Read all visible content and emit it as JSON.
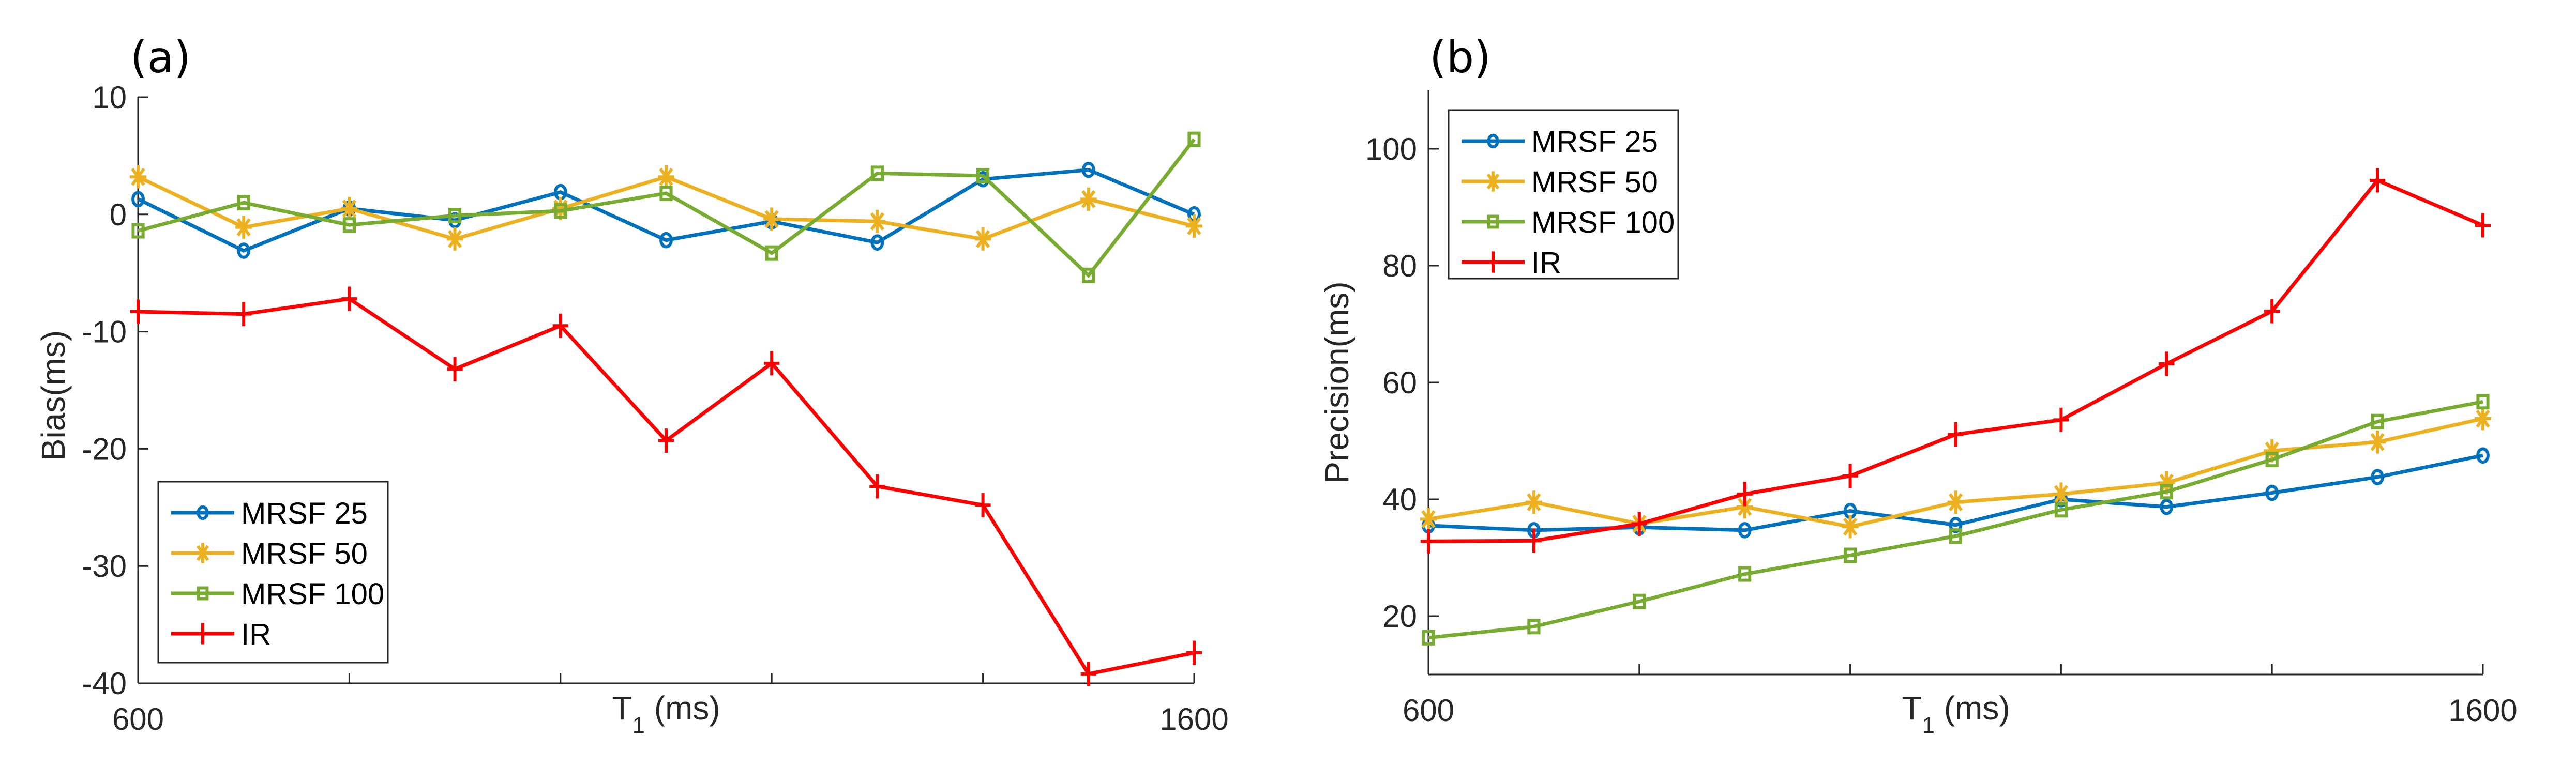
{
  "figure": {
    "panels": [
      "a",
      "b"
    ]
  },
  "chart_data": [
    {
      "type": "line",
      "panel_label": "(a)",
      "title": "",
      "xlabel": "T",
      "xlabel_subscript": "1",
      "xlabel_suffix": " (ms)",
      "ylabel": "Bias(ms)",
      "x": [
        600,
        700,
        800,
        900,
        1000,
        1100,
        1200,
        1300,
        1400,
        1500,
        1600
      ],
      "xlim": [
        600,
        1600
      ],
      "ylim": [
        -40,
        10
      ],
      "xticks": [
        600,
        800,
        1000,
        1200,
        1400,
        1600
      ],
      "xtick_labels": [
        "600",
        "",
        "",
        "",
        "",
        "1600"
      ],
      "yticks": [
        -40,
        -30,
        -20,
        -10,
        0,
        10
      ],
      "ytick_labels": [
        "-40",
        "-30",
        "-20",
        "-10",
        "0",
        "10"
      ],
      "grid": false,
      "legend_position": "bottom-left",
      "series": [
        {
          "name": "MRSF 25",
          "color": "#0072BD",
          "marker": "circle",
          "values": [
            1.3,
            -3.1,
            0.5,
            -0.5,
            1.9,
            -2.2,
            -0.6,
            -2.4,
            3.0,
            3.8,
            0.0
          ]
        },
        {
          "name": "MRSF 50",
          "color": "#EDB120",
          "marker": "asterisk",
          "values": [
            3.2,
            -1.1,
            0.5,
            -2.1,
            0.5,
            3.2,
            -0.4,
            -0.6,
            -2.1,
            1.3,
            -1.0
          ]
        },
        {
          "name": "MRSF 100",
          "color": "#77AC30",
          "marker": "square",
          "values": [
            -1.4,
            1.0,
            -0.9,
            -0.1,
            0.3,
            1.8,
            -3.3,
            3.5,
            3.3,
            -5.2,
            6.4
          ]
        },
        {
          "name": "IR",
          "color": "#FF0000",
          "marker": "plus",
          "values": [
            -8.3,
            -8.5,
            -7.2,
            -13.2,
            -9.5,
            -19.3,
            -12.7,
            -23.2,
            -24.8,
            -39.2,
            -37.4
          ]
        }
      ]
    },
    {
      "type": "line",
      "panel_label": "(b)",
      "title": "",
      "xlabel": "T",
      "xlabel_subscript": "1",
      "xlabel_suffix": " (ms)",
      "ylabel": "Precision(ms)",
      "x": [
        600,
        700,
        800,
        900,
        1000,
        1100,
        1200,
        1300,
        1400,
        1500,
        1600
      ],
      "xlim": [
        600,
        1600
      ],
      "ylim": [
        10,
        110
      ],
      "xticks": [
        600,
        800,
        1000,
        1200,
        1400,
        1600
      ],
      "xtick_labels": [
        "600",
        "",
        "",
        "",
        "",
        "1600"
      ],
      "yticks": [
        20,
        40,
        60,
        80,
        100
      ],
      "ytick_labels": [
        "20",
        "40",
        "60",
        "80",
        "100"
      ],
      "grid": false,
      "legend_position": "top-left",
      "series": [
        {
          "name": "MRSF 25",
          "color": "#0072BD",
          "marker": "circle",
          "values": [
            35.5,
            34.7,
            35.2,
            34.7,
            38.0,
            35.6,
            40.0,
            38.7,
            41.1,
            43.8,
            47.5
          ]
        },
        {
          "name": "MRSF 50",
          "color": "#EDB120",
          "marker": "asterisk",
          "values": [
            36.6,
            39.5,
            35.8,
            38.7,
            35.3,
            39.5,
            40.9,
            42.8,
            48.3,
            49.8,
            53.8
          ]
        },
        {
          "name": "MRSF 100",
          "color": "#77AC30",
          "marker": "square",
          "values": [
            16.3,
            18.2,
            22.5,
            27.2,
            30.4,
            33.7,
            38.2,
            41.3,
            46.8,
            53.3,
            56.7
          ]
        },
        {
          "name": "IR",
          "color": "#FF0000",
          "marker": "plus",
          "values": [
            32.8,
            32.9,
            35.8,
            40.9,
            44.0,
            51.1,
            53.6,
            63.2,
            72.2,
            94.6,
            86.9
          ]
        }
      ]
    }
  ]
}
